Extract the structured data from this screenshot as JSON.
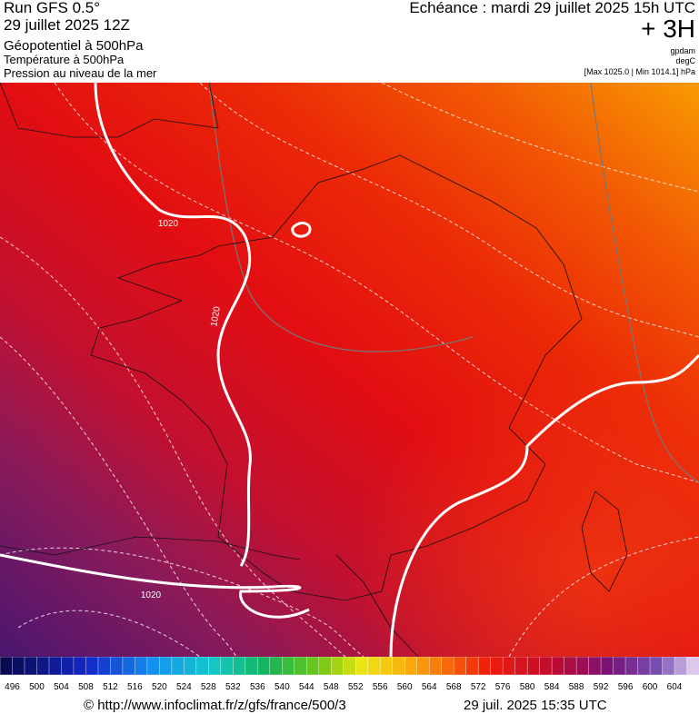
{
  "header": {
    "run": "Run GFS 0.5°",
    "date": "29 juillet 2025 12Z",
    "field": "Géopotentiel à 500hPa",
    "field2": "Température à 500hPa",
    "field3": "Pression au niveau de la mer",
    "echeance": "Echéance : mardi 29 juillet 2025 15h UTC",
    "lead": "+ 3H",
    "unit1": "gpdam",
    "unit2": "degC",
    "pressure_range": "[Max 1025.0 | Min 1014.1] hPa"
  },
  "map": {
    "isobar_labels": [
      "1020",
      "1020",
      "1020"
    ]
  },
  "colorbar": {
    "labels": [
      496,
      500,
      504,
      508,
      512,
      516,
      520,
      524,
      528,
      532,
      536,
      540,
      544,
      548,
      552,
      556,
      560,
      564,
      568,
      572,
      576,
      580,
      584,
      588,
      592,
      596,
      600,
      604
    ]
  },
  "footer": {
    "source": "© http://www.infoclimat.fr/z/gfs/france/500/3",
    "timestamp": "29 juil. 2025 15:35 UTC"
  }
}
